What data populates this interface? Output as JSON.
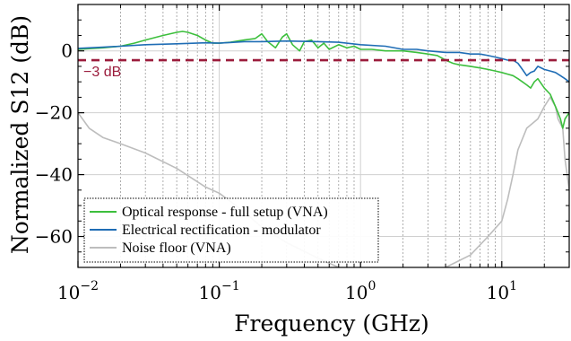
{
  "chart_data": {
    "type": "line",
    "xlabel": "Frequency (GHz)",
    "ylabel": "Normalized S12 (dB)",
    "xscale": "log",
    "xlim": [
      0.01,
      30
    ],
    "ylim": [
      -70,
      15
    ],
    "grid": true,
    "x_ticks": [
      0.01,
      0.1,
      1,
      10
    ],
    "x_tick_labels": [
      {
        "base": "10",
        "exp": "−2"
      },
      {
        "base": "10",
        "exp": "−1"
      },
      {
        "base": "10",
        "exp": "0"
      },
      {
        "base": "10",
        "exp": "1"
      }
    ],
    "y_ticks": [
      0,
      -20,
      -40,
      -60
    ],
    "y_tick_labels": [
      "0",
      "−20",
      "−40",
      "−60"
    ],
    "reference_line": {
      "y": -3,
      "label": "−3 dB",
      "color": "#9b1c3c"
    },
    "legend_position": "bottom-left",
    "series": [
      {
        "name": "Optical response - full setup (VNA)",
        "color": "#3dbf3d",
        "points": [
          [
            0.01,
            0.5
          ],
          [
            0.015,
            1
          ],
          [
            0.02,
            1.5
          ],
          [
            0.025,
            2.5
          ],
          [
            0.03,
            3.5
          ],
          [
            0.04,
            5
          ],
          [
            0.05,
            6
          ],
          [
            0.055,
            6.3
          ],
          [
            0.06,
            6
          ],
          [
            0.07,
            5
          ],
          [
            0.08,
            3.5
          ],
          [
            0.09,
            2.5
          ],
          [
            0.1,
            2.5
          ],
          [
            0.12,
            2.8
          ],
          [
            0.15,
            3.5
          ],
          [
            0.18,
            4
          ],
          [
            0.2,
            5.5
          ],
          [
            0.22,
            3
          ],
          [
            0.25,
            1
          ],
          [
            0.28,
            4.5
          ],
          [
            0.3,
            5.5
          ],
          [
            0.33,
            2
          ],
          [
            0.37,
            0
          ],
          [
            0.4,
            3
          ],
          [
            0.45,
            3.5
          ],
          [
            0.5,
            1
          ],
          [
            0.55,
            2.5
          ],
          [
            0.6,
            0.5
          ],
          [
            0.7,
            2
          ],
          [
            0.8,
            1
          ],
          [
            0.9,
            1.5
          ],
          [
            1,
            0.5
          ],
          [
            1.2,
            0.5
          ],
          [
            1.5,
            0
          ],
          [
            2,
            0
          ],
          [
            2.5,
            -0.5
          ],
          [
            3,
            -1
          ],
          [
            3.5,
            -1.5
          ],
          [
            4,
            -3
          ],
          [
            4.5,
            -4
          ],
          [
            5,
            -4.5
          ],
          [
            6,
            -5
          ],
          [
            7,
            -5.5
          ],
          [
            8,
            -6
          ],
          [
            9,
            -6.5
          ],
          [
            10,
            -7
          ],
          [
            11,
            -7.5
          ],
          [
            12,
            -8
          ],
          [
            13,
            -9
          ],
          [
            14,
            -10
          ],
          [
            15,
            -11
          ],
          [
            16,
            -12
          ],
          [
            17,
            -10
          ],
          [
            18,
            -9
          ],
          [
            20,
            -12
          ],
          [
            22,
            -14
          ],
          [
            24,
            -18
          ],
          [
            25,
            -20
          ],
          [
            26,
            -22
          ],
          [
            27,
            -25
          ],
          [
            28,
            -22
          ],
          [
            30,
            -20
          ]
        ]
      },
      {
        "name": "Electrical rectification - modulator",
        "color": "#1f6db5",
        "points": [
          [
            0.01,
            0.8
          ],
          [
            0.015,
            1.2
          ],
          [
            0.02,
            1.5
          ],
          [
            0.03,
            2
          ],
          [
            0.05,
            2.3
          ],
          [
            0.08,
            2.6
          ],
          [
            0.1,
            2.5
          ],
          [
            0.15,
            3
          ],
          [
            0.2,
            3
          ],
          [
            0.3,
            3.2
          ],
          [
            0.5,
            3
          ],
          [
            0.7,
            2.8
          ],
          [
            1,
            2
          ],
          [
            1.5,
            1.5
          ],
          [
            2,
            0.5
          ],
          [
            2.5,
            0.5
          ],
          [
            3,
            0
          ],
          [
            4,
            -0.5
          ],
          [
            5,
            -0.5
          ],
          [
            6,
            -1
          ],
          [
            7,
            -1
          ],
          [
            8,
            -1.5
          ],
          [
            9,
            -2
          ],
          [
            10,
            -2.5
          ],
          [
            11,
            -3
          ],
          [
            12,
            -3
          ],
          [
            13,
            -4
          ],
          [
            14,
            -6
          ],
          [
            15,
            -8
          ],
          [
            16,
            -7
          ],
          [
            17,
            -6.5
          ],
          [
            18,
            -5
          ],
          [
            20,
            -6
          ],
          [
            22,
            -6.5
          ],
          [
            24,
            -7
          ],
          [
            26,
            -8
          ],
          [
            28,
            -9
          ],
          [
            30,
            -10
          ]
        ]
      },
      {
        "name": "Noise floor (VNA)",
        "color": "#bdbdbd",
        "points": [
          [
            0.01,
            -20
          ],
          [
            0.012,
            -25
          ],
          [
            0.015,
            -28
          ],
          [
            0.02,
            -30
          ],
          [
            0.03,
            -33
          ],
          [
            0.05,
            -38
          ],
          [
            0.08,
            -44
          ],
          [
            0.1,
            -46
          ],
          [
            0.15,
            -52
          ],
          [
            0.2,
            -57
          ],
          [
            0.3,
            -62
          ],
          [
            0.5,
            -67
          ],
          [
            0.7,
            -70
          ],
          [
            1,
            -72
          ],
          [
            2,
            -72
          ],
          [
            4,
            -70
          ],
          [
            6,
            -66
          ],
          [
            8,
            -60
          ],
          [
            10,
            -55
          ],
          [
            11,
            -48
          ],
          [
            12,
            -40
          ],
          [
            13,
            -32
          ],
          [
            15,
            -25
          ],
          [
            18,
            -22
          ],
          [
            20,
            -18
          ],
          [
            22,
            -15
          ],
          [
            24,
            -18
          ],
          [
            25,
            -22
          ],
          [
            27,
            -25
          ],
          [
            28,
            -35
          ],
          [
            29,
            -40
          ],
          [
            30,
            -45
          ]
        ]
      }
    ]
  }
}
